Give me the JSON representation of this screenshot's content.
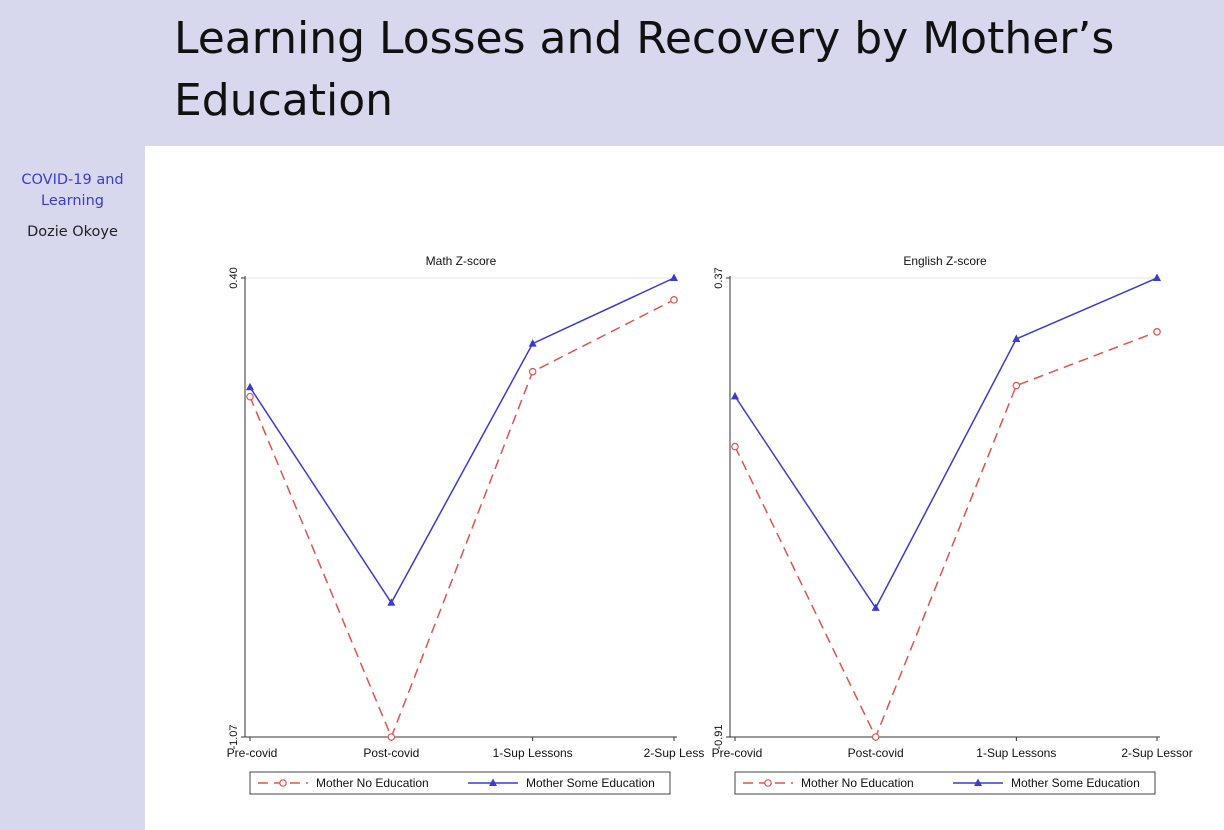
{
  "slide": {
    "title": "Learning Losses and Recovery by Mother’s Education"
  },
  "sidebar": {
    "talk_title": "COVID-19 and Learning",
    "author": "Dozie Okoye"
  },
  "chart_data": [
    {
      "type": "line",
      "title": "Math Z-score",
      "categories": [
        "Pre-covid",
        "Post-covid",
        "1-Sup Lessons",
        "2-Sup Less"
      ],
      "ylim": [
        -1.07,
        0.4
      ],
      "ytick_labels": [
        "-1.07",
        "0.40"
      ],
      "grid": false,
      "legend": "bottom",
      "series": [
        {
          "name": "Mother No Education",
          "color": "#e0534f",
          "dash": "dashed",
          "marker": "circle",
          "values": [
            0.02,
            -1.07,
            0.1,
            0.33
          ]
        },
        {
          "name": "Mother Some Education",
          "color": "#3b3bcf",
          "dash": "solid",
          "marker": "triangle",
          "values": [
            0.05,
            -0.64,
            0.19,
            0.4
          ]
        }
      ]
    },
    {
      "type": "line",
      "title": "English Z-score",
      "categories": [
        "Pre-covid",
        "Post-covid",
        "1-Sup Lessons",
        "2-Sup Lessor"
      ],
      "ylim": [
        -0.91,
        0.37
      ],
      "ytick_labels": [
        "-0.91",
        "0.37"
      ],
      "grid": false,
      "legend": "bottom",
      "series": [
        {
          "name": "Mother No Education",
          "color": "#e0534f",
          "dash": "dashed",
          "marker": "circle",
          "values": [
            -0.1,
            -0.91,
            0.07,
            0.22
          ]
        },
        {
          "name": "Mother Some Education",
          "color": "#3b3bcf",
          "dash": "solid",
          "marker": "triangle",
          "values": [
            0.04,
            -0.55,
            0.2,
            0.37
          ]
        }
      ]
    }
  ]
}
